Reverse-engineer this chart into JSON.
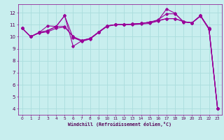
{
  "background_color": "#c8eeee",
  "grid_color": "#aadddd",
  "line_color": "#990099",
  "xlabel": "Windchill (Refroidissement éolien,°C)",
  "xlim": [
    -0.5,
    23.5
  ],
  "ylim": [
    3.5,
    12.7
  ],
  "yticks": [
    4,
    5,
    6,
    7,
    8,
    9,
    10,
    11,
    12
  ],
  "xticks": [
    0,
    1,
    2,
    3,
    4,
    5,
    6,
    7,
    8,
    9,
    10,
    11,
    12,
    13,
    14,
    15,
    16,
    17,
    18,
    19,
    20,
    21,
    22,
    23
  ],
  "line_diag_x": [
    0,
    1,
    2,
    3,
    4,
    5,
    6,
    7,
    8,
    9,
    10,
    11,
    12,
    13,
    14,
    15,
    16,
    17,
    18,
    19,
    20,
    21,
    22,
    23
  ],
  "line_diag_y": [
    10.7,
    10.0,
    10.3,
    10.4,
    10.7,
    10.8,
    10.0,
    9.6,
    9.8,
    10.35,
    10.85,
    11.0,
    11.0,
    11.0,
    11.05,
    11.1,
    11.3,
    11.5,
    11.5,
    11.25,
    11.15,
    11.7,
    10.6,
    4.0
  ],
  "line_a_x": [
    0,
    1,
    2,
    3,
    4,
    5,
    6,
    7,
    8,
    9,
    10,
    11,
    12,
    13,
    14,
    15,
    16,
    17,
    18,
    19,
    20,
    21,
    22,
    23
  ],
  "line_a_y": [
    10.7,
    10.0,
    10.35,
    10.5,
    10.85,
    11.75,
    9.9,
    9.65,
    9.85,
    10.35,
    10.9,
    11.0,
    11.0,
    11.05,
    11.1,
    11.2,
    11.4,
    11.9,
    11.9,
    11.25,
    11.15,
    11.75,
    10.7,
    4.05
  ],
  "line_b_x": [
    0,
    1,
    2,
    3,
    4,
    5,
    6,
    7,
    8,
    9,
    10,
    11,
    12,
    13,
    14,
    15,
    16,
    17,
    18,
    19,
    20,
    21,
    22,
    23
  ],
  "line_b_y": [
    10.7,
    10.0,
    10.35,
    10.5,
    10.85,
    11.75,
    9.2,
    9.65,
    9.85,
    10.35,
    10.9,
    11.0,
    11.0,
    11.05,
    11.1,
    11.2,
    11.35,
    12.3,
    11.95,
    11.2,
    11.15,
    11.75,
    10.65,
    4.05
  ],
  "line_c_x": [
    0,
    1,
    2,
    3,
    4,
    5,
    6,
    7,
    8,
    9,
    10,
    11,
    12,
    13,
    14,
    15,
    16,
    17,
    18,
    19,
    20,
    21,
    22,
    23
  ],
  "line_c_y": [
    10.7,
    10.0,
    10.35,
    10.9,
    10.85,
    10.85,
    10.0,
    9.7,
    9.85,
    10.4,
    10.9,
    11.0,
    11.0,
    11.05,
    11.1,
    11.2,
    11.35,
    11.5,
    11.5,
    11.25,
    11.15,
    11.75,
    10.65,
    4.05
  ]
}
